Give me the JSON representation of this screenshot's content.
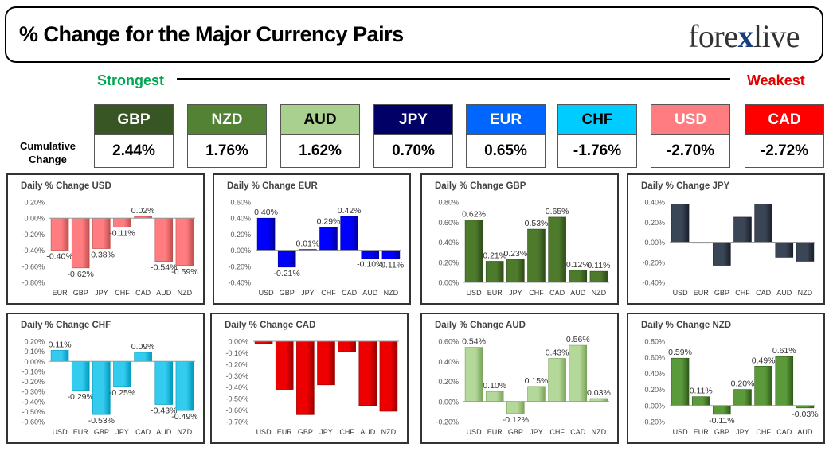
{
  "header": {
    "title": "% Change for the Major Currency Pairs",
    "logo": "forexlive"
  },
  "strength": {
    "strongest": "Strongest",
    "weakest": "Weakest"
  },
  "cumulative_label": [
    "Cumulative",
    "Change"
  ],
  "currencies": [
    {
      "code": "GBP",
      "value": "2.44%",
      "color": "#375623",
      "text_color": "#ffffff"
    },
    {
      "code": "NZD",
      "value": "1.76%",
      "color": "#548235",
      "text_color": "#ffffff"
    },
    {
      "code": "AUD",
      "value": "1.62%",
      "color": "#a9d08e",
      "text_color": "#000000"
    },
    {
      "code": "JPY",
      "value": "0.70%",
      "color": "#000066",
      "text_color": "#ffffff"
    },
    {
      "code": "EUR",
      "value": "0.65%",
      "color": "#0066ff",
      "text_color": "#ffffff"
    },
    {
      "code": "CHF",
      "value": "-1.76%",
      "color": "#00ccff",
      "text_color": "#000000"
    },
    {
      "code": "USD",
      "value": "-2.70%",
      "color": "#ff7c80",
      "text_color": "#ffffff"
    },
    {
      "code": "CAD",
      "value": "-2.72%",
      "color": "#ff0000",
      "text_color": "#ffffff"
    }
  ],
  "chart_data": [
    {
      "type": "bar",
      "title": "Daily % Change USD",
      "color": "#ff7c80",
      "dark": "#c0504d",
      "categories": [
        "EUR",
        "GBP",
        "JPY",
        "CHF",
        "CAD",
        "AUD",
        "NZD"
      ],
      "values": [
        -0.4,
        -0.62,
        -0.38,
        -0.11,
        0.02,
        -0.54,
        -0.59
      ],
      "data_labels": [
        "-0.40%",
        "-0.62%",
        "-0.38%",
        "-0.11%",
        "0.02%",
        "-0.54%",
        "-0.59%"
      ],
      "ylim": [
        -0.8,
        0.2
      ],
      "yticks": [
        0.2,
        0.0,
        -0.2,
        -0.4,
        -0.6,
        -0.8
      ],
      "ytick_labels": [
        "0.20%",
        "0.00%",
        "-0.20%",
        "-0.40%",
        "-0.60%",
        "-0.80%"
      ]
    },
    {
      "type": "bar",
      "title": "Daily % Change EUR",
      "color": "#0000ff",
      "dark": "#000099",
      "categories": [
        "USD",
        "GBP",
        "JPY",
        "CHF",
        "CAD",
        "AUD",
        "NZD"
      ],
      "values": [
        0.4,
        -0.21,
        0.01,
        0.29,
        0.42,
        -0.1,
        -0.11
      ],
      "data_labels": [
        "0.40%",
        "-0.21%",
        "0.01%",
        "0.29%",
        "0.42%",
        "-0.10%",
        "-0.11%"
      ],
      "ylim": [
        -0.4,
        0.6
      ],
      "yticks": [
        0.6,
        0.4,
        0.2,
        0.0,
        -0.2,
        -0.4
      ],
      "ytick_labels": [
        "0.60%",
        "0.40%",
        "0.20%",
        "0.00%",
        "-0.20%",
        "-0.40%"
      ]
    },
    {
      "type": "bar",
      "title": "Daily % Change GBP",
      "color": "#4e7a2c",
      "dark": "#2e4a18",
      "categories": [
        "USD",
        "EUR",
        "JPY",
        "CHF",
        "CAD",
        "AUD",
        "NZD"
      ],
      "values": [
        0.62,
        0.21,
        0.23,
        0.53,
        0.65,
        0.12,
        0.11
      ],
      "data_labels": [
        "0.62%",
        "0.21%",
        "0.23%",
        "0.53%",
        "0.65%",
        "0.12%",
        "0.11%"
      ],
      "ylim": [
        0.0,
        0.8
      ],
      "yticks": [
        0.8,
        0.6,
        0.4,
        0.2,
        0.0
      ],
      "ytick_labels": [
        "0.80%",
        "0.60%",
        "0.40%",
        "0.20%",
        "0.00%"
      ]
    },
    {
      "type": "bar",
      "title": "Daily % Change JPY",
      "color": "#3a4556",
      "dark": "#1a1f2a",
      "categories": [
        "USD",
        "EUR",
        "GBP",
        "CHF",
        "CAD",
        "AUD",
        "NZD"
      ],
      "values": [
        0.38,
        -0.01,
        -0.23,
        0.25,
        0.38,
        -0.15,
        -0.19
      ],
      "data_labels": [],
      "ylim": [
        -0.4,
        0.4
      ],
      "yticks": [
        0.4,
        0.2,
        0.0,
        -0.2,
        -0.4
      ],
      "ytick_labels": [
        "0.40%",
        "0.20%",
        "0.00%",
        "-0.20%",
        "-0.40%"
      ]
    },
    {
      "type": "bar",
      "title": "Daily % Change CHF",
      "color": "#33ccee",
      "dark": "#0099bb",
      "categories": [
        "USD",
        "EUR",
        "GBP",
        "JPY",
        "CAD",
        "AUD",
        "NZD"
      ],
      "values": [
        0.11,
        -0.29,
        -0.53,
        -0.25,
        0.09,
        -0.43,
        -0.49
      ],
      "data_labels": [
        "0.11%",
        "-0.29%",
        "-0.53%",
        "-0.25%",
        "0.09%",
        "-0.43%",
        "-0.49%"
      ],
      "ylim": [
        -0.6,
        0.2
      ],
      "yticks": [
        0.2,
        0.1,
        0.0,
        -0.1,
        -0.2,
        -0.3,
        -0.4,
        -0.5,
        -0.6
      ],
      "ytick_labels": [
        "0.20%",
        "0.10%",
        "0.00%",
        "-0.10%",
        "-0.20%",
        "-0.30%",
        "-0.40%",
        "-0.50%",
        "-0.60%"
      ]
    },
    {
      "type": "bar",
      "title": "Daily % Change CAD",
      "color": "#ee0000",
      "dark": "#990000",
      "categories": [
        "USD",
        "EUR",
        "GBP",
        "JPY",
        "CHF",
        "AUD",
        "NZD"
      ],
      "values": [
        -0.02,
        -0.42,
        -0.64,
        -0.38,
        -0.09,
        -0.56,
        -0.61
      ],
      "data_labels": [],
      "ylim": [
        -0.7,
        0.0
      ],
      "yticks": [
        0.0,
        -0.1,
        -0.2,
        -0.3,
        -0.4,
        -0.5,
        -0.6,
        -0.7
      ],
      "ytick_labels": [
        "0.00%",
        "-0.10%",
        "-0.20%",
        "-0.30%",
        "-0.40%",
        "-0.50%",
        "-0.60%",
        "-0.70%"
      ]
    },
    {
      "type": "bar",
      "title": "Daily % Change AUD",
      "color": "#b4d89a",
      "dark": "#7aa358",
      "categories": [
        "USD",
        "EUR",
        "GBP",
        "JPY",
        "CHF",
        "CAD",
        "NZD"
      ],
      "values": [
        0.54,
        0.1,
        -0.12,
        0.15,
        0.43,
        0.56,
        0.03
      ],
      "data_labels": [
        "0.54%",
        "0.10%",
        "-0.12%",
        "0.15%",
        "0.43%",
        "0.56%",
        "0.03%"
      ],
      "ylim": [
        -0.2,
        0.6
      ],
      "yticks": [
        0.6,
        0.4,
        0.2,
        0.0,
        -0.2
      ],
      "ytick_labels": [
        "0.60%",
        "0.40%",
        "0.20%",
        "0.00%",
        "-0.20%"
      ]
    },
    {
      "type": "bar",
      "title": "Daily % Change NZD",
      "color": "#5a9a3a",
      "dark": "#2f5a1a",
      "categories": [
        "USD",
        "EUR",
        "GBP",
        "JPY",
        "CHF",
        "CAD",
        "AUD"
      ],
      "values": [
        0.59,
        0.11,
        -0.11,
        0.2,
        0.49,
        0.61,
        -0.03
      ],
      "data_labels": [
        "0.59%",
        "0.11%",
        "-0.11%",
        "0.20%",
        "0.49%",
        "0.61%",
        "-0.03%"
      ],
      "ylim": [
        -0.2,
        0.8
      ],
      "yticks": [
        0.8,
        0.6,
        0.4,
        0.2,
        0.0,
        -0.2
      ],
      "ytick_labels": [
        "0.80%",
        "0.60%",
        "0.40%",
        "0.20%",
        "0.00%",
        "-0.20%"
      ]
    }
  ]
}
